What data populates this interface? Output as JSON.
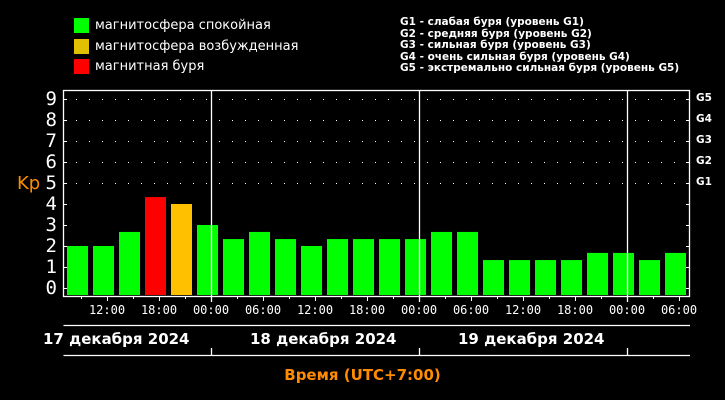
{
  "legend": {
    "items": [
      {
        "label": "магнитосфера спокойная",
        "color": "#00ff00"
      },
      {
        "label": "магнитосфера возбужденная",
        "color": "#e0c000"
      },
      {
        "label": "магнитная буря",
        "color": "#ff0000"
      }
    ],
    "g_scale": [
      "G1 - слабая буря (уровень G1)",
      "G2 - средняя буря (уровень G2)",
      "G3 - сильная буря (уровень G3)",
      "G4 - очень сильная буря (уровень G4)",
      "G5 - экстремально сильная буря (уровень G5)"
    ]
  },
  "chart_data": {
    "type": "bar",
    "title": "",
    "xlabel": "Время (UTC+7:00)",
    "ylabel": "Kp",
    "ylim": [
      0,
      9
    ],
    "yticks": [
      "0",
      "1",
      "2",
      "3",
      "4",
      "5",
      "6",
      "7",
      "8",
      "9"
    ],
    "right_axis_labels": [
      {
        "label": "G1",
        "kp": 5
      },
      {
        "label": "G2",
        "kp": 6
      },
      {
        "label": "G3",
        "kp": 7
      },
      {
        "label": "G4",
        "kp": 8
      },
      {
        "label": "G5",
        "kp": 9
      }
    ],
    "x_tick_labels": [
      "12:00",
      "18:00",
      "00:00",
      "06:00",
      "12:00",
      "18:00",
      "00:00",
      "06:00",
      "12:00",
      "18:00",
      "00:00",
      "06:00"
    ],
    "date_labels": [
      "17 декабря 2024",
      "18 декабря 2024",
      "19 декабря 2024"
    ],
    "grid": "dotted horizontal at Kp 5-9",
    "interval_hours": 3,
    "values": [
      2.0,
      2.0,
      2.67,
      4.33,
      4.0,
      3.0,
      2.33,
      2.67,
      2.33,
      2.0,
      2.33,
      2.33,
      2.33,
      2.33,
      2.67,
      2.67,
      1.33,
      1.33,
      1.33,
      1.33,
      1.67,
      1.67,
      1.33,
      1.67
    ],
    "colors": [
      "green",
      "green",
      "green",
      "red",
      "yellow",
      "green",
      "green",
      "green",
      "green",
      "green",
      "green",
      "green",
      "green",
      "green",
      "green",
      "green",
      "green",
      "green",
      "green",
      "green",
      "green",
      "green",
      "green",
      "green"
    ]
  },
  "colors": {
    "green": "#00ff00",
    "yellow": "#ffc000",
    "red": "#ff0000",
    "axis_label": "#ff8c00"
  }
}
